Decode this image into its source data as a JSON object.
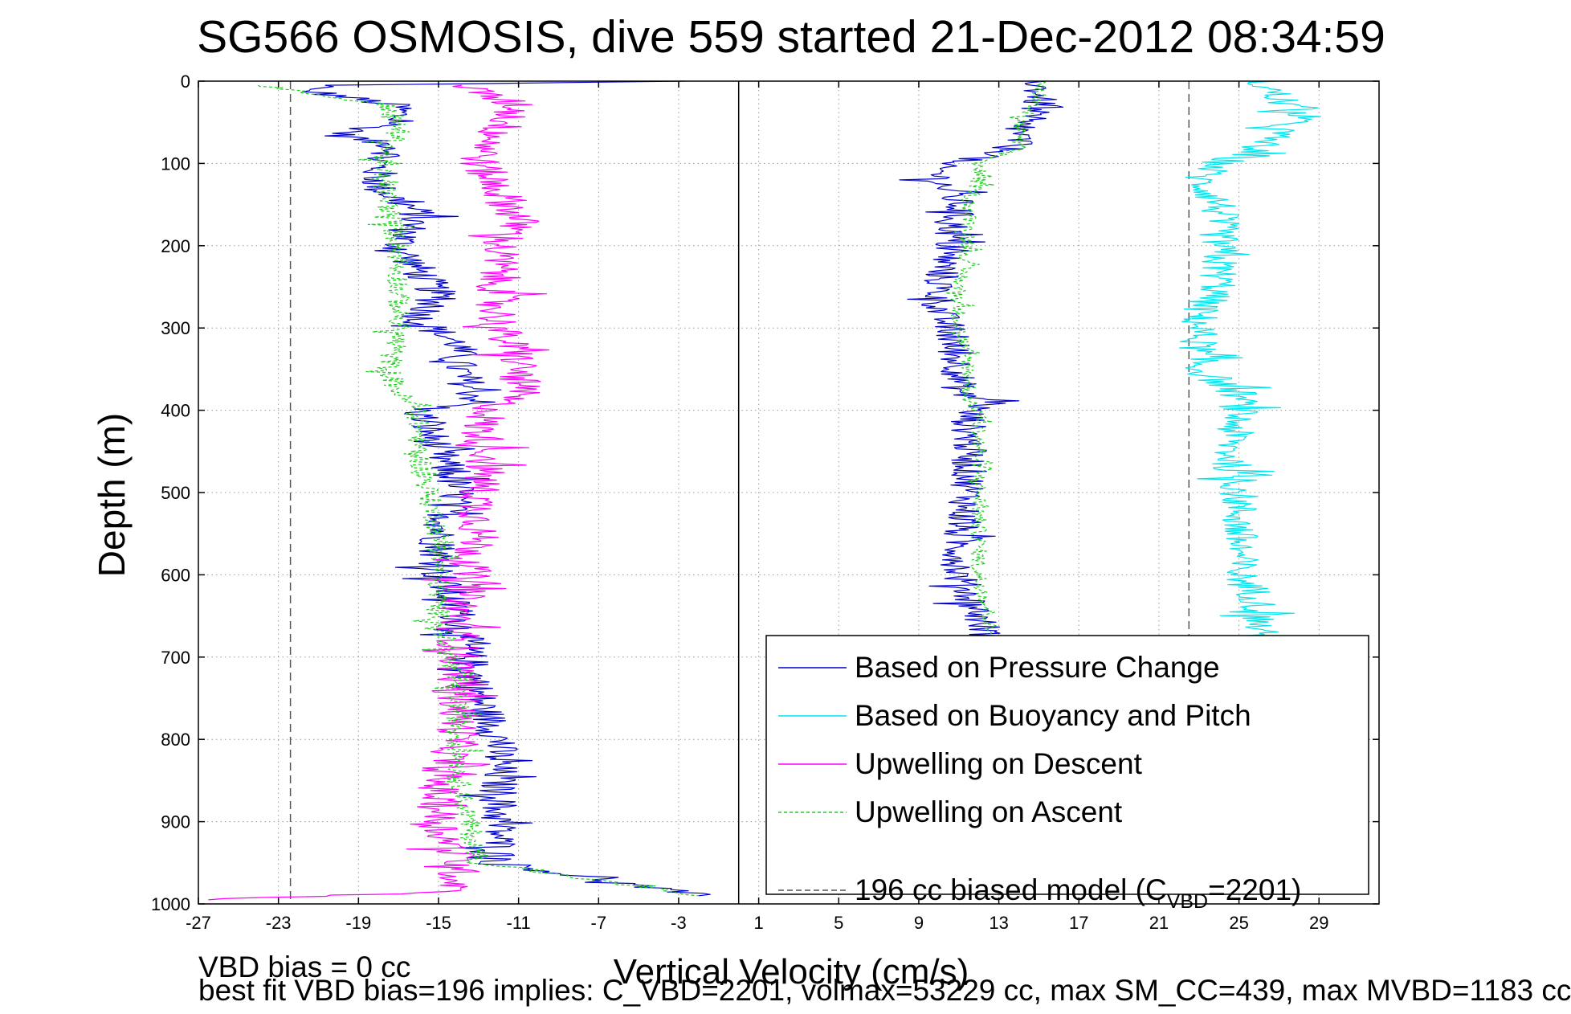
{
  "chart_data": {
    "type": "line",
    "title": "SG566 OSMOSIS, dive 559 started 21-Dec-2012 08:34:59",
    "xlabel": "Vertical Velocity (cm/s)",
    "ylabel": "Depth (m)",
    "xlim": [
      -27,
      32
    ],
    "ylim": [
      1000,
      0
    ],
    "y_reversed": true,
    "xticks": [
      -27,
      -23,
      -19,
      -15,
      -11,
      -7,
      -3,
      1,
      5,
      9,
      13,
      17,
      21,
      25,
      29
    ],
    "yticks": [
      0,
      100,
      200,
      300,
      400,
      500,
      600,
      700,
      800,
      900,
      1000
    ],
    "grid": true,
    "legend_position": "bottom-right",
    "reference_lines": [
      {
        "name": "zero",
        "x": 0,
        "style": "solid",
        "color": "#000000"
      },
      {
        "name": "model-descent",
        "x": -22.4,
        "style": "dashed",
        "color": "#555555"
      },
      {
        "name": "model-ascent",
        "x": 22.5,
        "style": "dashed",
        "color": "#555555"
      }
    ],
    "series": [
      {
        "name": "Based on Pressure Change",
        "color": "#0000cc",
        "style": "solid",
        "segments": [
          {
            "depth": [
              0,
              5,
              10,
              30,
              50,
              65,
              80,
              100,
              130,
              160,
              200,
              230,
              260,
              290,
              320,
              350,
              390,
              400,
              450,
              500,
              550,
              600,
              650,
              700,
              750,
              800,
              850,
              900,
              950,
              990
            ],
            "value": [
              -3,
              -20,
              -22,
              -17,
              -17,
              -20,
              -17,
              -18,
              -18,
              -16,
              -17,
              -16,
              -15,
              -16,
              -14,
              -14,
              -13,
              -16,
              -15,
              -14,
              -15,
              -15,
              -14,
              -13.5,
              -13,
              -12,
              -12,
              -12,
              -12,
              -2
            ],
            "noise": 1.0
          },
          {
            "depth": [
              0,
              10,
              30,
              50,
              70,
              90,
              100,
              120,
              150,
              200,
              250,
              280,
              300,
              350,
              380,
              390,
              400,
              450,
              500,
              550,
              600,
              650,
              680
            ],
            "value": [
              15,
              15,
              15,
              14,
              14,
              13,
              10,
              10,
              11,
              10.5,
              10,
              10,
              10.5,
              11,
              11,
              13,
              11.5,
              11.5,
              11.5,
              11,
              11,
              12,
              12.5
            ],
            "noise": 0.9
          }
        ]
      },
      {
        "name": "Based on Buoyancy and Pitch",
        "color": "#00e5ee",
        "style": "solid",
        "segments": [
          {
            "depth": [
              0,
              20,
              40,
              60,
              80,
              100,
              120,
              150,
              170,
              200,
              230,
              250,
              280,
              300,
              350,
              380,
              400,
              450,
              500,
              550,
              600,
              630,
              680
            ],
            "value": [
              26,
              27,
              28,
              27,
              26,
              24,
              23,
              24,
              24,
              24,
              24,
              24,
              23,
              23,
              23,
              25,
              25,
              24.5,
              25,
              25,
              25,
              26,
              26
            ],
            "noise": 1.0
          }
        ]
      },
      {
        "name": "Upwelling on Descent",
        "color": "#ff00ff",
        "style": "solid",
        "segments": [
          {
            "depth": [
              5,
              30,
              60,
              100,
              130,
              170,
              200,
              230,
              260,
              300,
              340,
              380,
              390,
              420,
              450,
              500,
              550,
              600,
              650,
              700,
              750,
              800,
              850,
              900,
              950,
              985,
              995
            ],
            "value": [
              -14,
              -11,
              -12,
              -13,
              -12,
              -11,
              -12,
              -12,
              -12,
              -12,
              -11,
              -11,
              -12,
              -13,
              -12.5,
              -13,
              -13,
              -13.5,
              -14,
              -14,
              -14,
              -14,
              -15,
              -15,
              -14,
              -14,
              -26.5
            ],
            "noise": 1.1
          }
        ]
      },
      {
        "name": "Upwelling on Ascent",
        "color": "#22cc22",
        "style": "dashed",
        "segments": [
          {
            "depth": [
              5,
              30,
              60,
              100,
              150,
              200,
              250,
              300,
              350,
              380,
              400,
              450,
              500,
              550,
              600,
              650,
              700,
              750,
              800,
              850,
              900,
              950,
              990
            ],
            "value": [
              -24,
              -17.5,
              -17,
              -18,
              -17.5,
              -17,
              -17,
              -17,
              -17.5,
              -17,
              -16,
              -16,
              -15.5,
              -15,
              -15,
              -15,
              -14.5,
              -14,
              -14,
              -14,
              -13.5,
              -13,
              -2
            ],
            "noise": 0.6
          },
          {
            "depth": [
              0,
              20,
              50,
              80,
              100,
              120,
              150,
              200,
              250,
              300,
              350,
              390,
              400,
              450,
              500,
              550,
              600,
              650,
              680
            ],
            "value": [
              15,
              15,
              14,
              14,
              12,
              12,
              11.5,
              11.5,
              11,
              11,
              11.5,
              11.5,
              12,
              12,
              12,
              12,
              12,
              12.5,
              12.5
            ],
            "noise": 0.4
          }
        ]
      }
    ],
    "model_legend_label": "196 cc biased model (C",
    "model_legend_sub": "VBD",
    "model_legend_suffix": "=2201)"
  },
  "footer": {
    "line1": "VBD bias = 0 cc",
    "line2": "best fit VBD bias=196 implies: C_VBD=2201, volmax=53229 cc, max SM_CC=439, max MVBD=1183 cc"
  }
}
